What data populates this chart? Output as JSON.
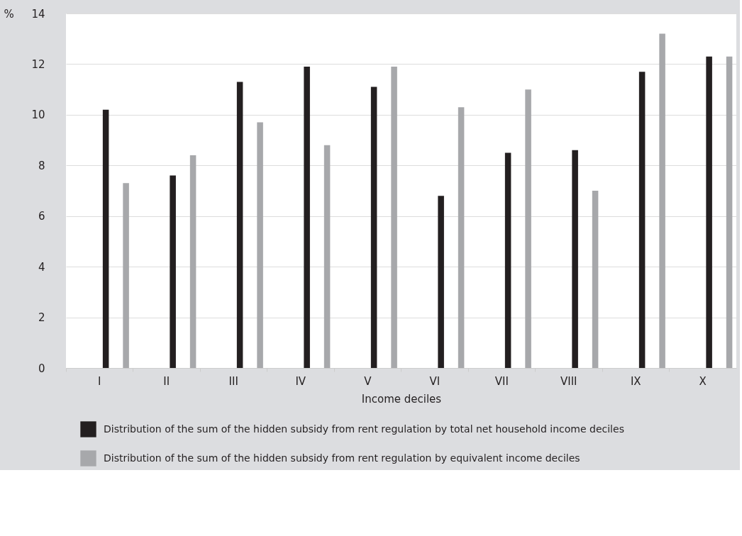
{
  "chart_data": {
    "type": "bar",
    "ylabel": "%",
    "xlabel": "Income deciles",
    "categories": [
      "I",
      "II",
      "III",
      "IV",
      "V",
      "VI",
      "VII",
      "VIII",
      "IX",
      "X"
    ],
    "series": [
      {
        "name": "Distribution of the sum of the hidden subsidy from rent regulation by total net household income deciles",
        "color": "#231f20",
        "values": [
          10.2,
          7.6,
          11.3,
          11.9,
          11.1,
          6.8,
          8.5,
          8.6,
          11.7,
          12.3
        ]
      },
      {
        "name": "Distribution of the sum of the hidden subsidy from rent regulation by equivalent income deciles",
        "color": "#a7a8ab",
        "values": [
          7.3,
          8.4,
          9.7,
          8.8,
          11.9,
          10.3,
          11.0,
          7.0,
          13.2,
          12.3
        ]
      }
    ],
    "ylim": [
      0,
      14
    ],
    "yticks": [
      0,
      2,
      4,
      6,
      8,
      10,
      12,
      14
    ],
    "grid": "y",
    "legend": "bottom"
  }
}
